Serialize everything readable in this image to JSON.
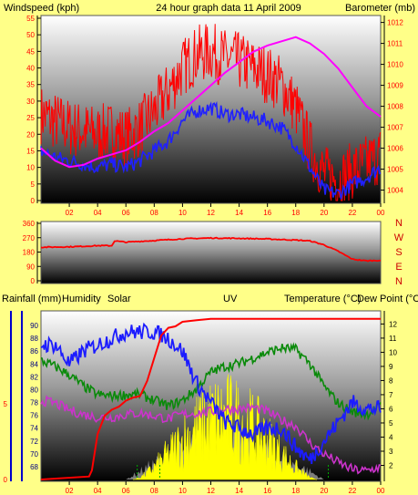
{
  "colors": {
    "background": "#ffff88",
    "wind": "#ff0000",
    "gust": "#ff0000",
    "avg": "#2020ff",
    "pressure": "#ff00ff",
    "direction": "#ff0000",
    "rain": "#ff0000",
    "humidity": "#1c1cff",
    "solar": "#dcdcdc",
    "uv": "#ffff00",
    "temperature": "#0a8a0a",
    "dewpoint": "#cc33cc",
    "axis_text": "#ff0000",
    "temp_axis_text": "#000000",
    "hum_axis_text": "#000080",
    "compass_text": "#cc0000"
  },
  "header": {
    "left_title": "Windspeed (kph)",
    "center_title": "24 hour graph data   11 April 2009",
    "right_title": "Barometer (mb)"
  },
  "direction_axis": {
    "labels": [
      "N",
      "W",
      "S",
      "E",
      "N"
    ]
  },
  "bottom_header": {
    "rainfall": "Rainfall (mm)",
    "humidity": "Humidity",
    "solar": "Solar",
    "uv": "UV",
    "temperature": "Temperature (°C)",
    "dewpoint": "Dew Point (°C"
  },
  "chart_data": [
    {
      "type": "line",
      "title": "24 hour graph data   11 April 2009",
      "x_ticks": [
        "02",
        "04",
        "06",
        "08",
        "10",
        "12",
        "14",
        "16",
        "18",
        "20",
        "22",
        "00"
      ],
      "ylabel": "Windspeed (kph)",
      "ylim": [
        0,
        55
      ],
      "yticks": [
        0,
        5,
        10,
        15,
        20,
        25,
        30,
        35,
        40,
        45,
        50,
        55
      ],
      "y2label": "Barometer (mb)",
      "y2lim": [
        1003.5,
        1012.2
      ],
      "y2ticks": [
        1004,
        1005,
        1006,
        1007,
        1008,
        1009,
        1010,
        1011,
        1012
      ],
      "series": [
        {
          "x": [
            0,
            1,
            2,
            3,
            4,
            5,
            6,
            7,
            8,
            9,
            10,
            11,
            12,
            13,
            14,
            15,
            16,
            17,
            18,
            19,
            20,
            21,
            22,
            23,
            24
          ],
          "values": [
            26,
            24,
            22,
            21,
            20,
            21,
            19,
            22,
            27,
            33,
            40,
            44,
            45,
            43,
            42,
            40,
            38,
            35,
            28,
            16,
            8,
            6,
            9,
            11,
            14
          ]
        },
        {
          "x": [
            0,
            1,
            2,
            3,
            4,
            5,
            6,
            7,
            8,
            9,
            10,
            11,
            12,
            13,
            14,
            15,
            16,
            17,
            18,
            19,
            20,
            21,
            22,
            23,
            24
          ],
          "values": [
            15,
            13,
            12,
            11,
            10,
            11,
            10,
            12,
            15,
            18,
            24,
            27,
            28,
            26,
            26,
            25,
            24,
            22,
            17,
            10,
            3,
            2,
            5,
            7,
            10
          ]
        },
        {
          "x": [
            0,
            1,
            2,
            3,
            4,
            5,
            6,
            7,
            8,
            9,
            10,
            11,
            12,
            13,
            14,
            15,
            16,
            17,
            18,
            19,
            20,
            21,
            22,
            23,
            24
          ],
          "values": [
            1006.0,
            1005.4,
            1005.1,
            1005.2,
            1005.5,
            1005.7,
            1005.9,
            1006.3,
            1006.8,
            1007.2,
            1007.8,
            1008.4,
            1009.0,
            1009.6,
            1010.1,
            1010.6,
            1010.9,
            1011.1,
            1011.3,
            1011.0,
            1010.5,
            1009.8,
            1008.9,
            1008.0,
            1007.5
          ]
        }
      ]
    },
    {
      "type": "line",
      "x_ticks": [
        "02",
        "04",
        "06",
        "08",
        "10",
        "12",
        "14",
        "16",
        "18",
        "20",
        "22",
        "00"
      ],
      "ylim": [
        0,
        360
      ],
      "yticks": [
        0,
        90,
        180,
        270,
        360
      ],
      "series": [
        {
          "x": [
            0,
            2,
            3,
            4,
            5,
            5.2,
            6,
            8,
            10,
            12,
            14,
            16,
            18,
            19,
            20,
            21,
            22,
            23,
            24
          ],
          "values": [
            210,
            213,
            216,
            220,
            220,
            250,
            242,
            252,
            263,
            268,
            266,
            262,
            255,
            250,
            225,
            185,
            135,
            125,
            128
          ]
        }
      ]
    },
    {
      "type": "line",
      "x_ticks": [
        "02",
        "04",
        "06",
        "08",
        "10",
        "12",
        "14",
        "16",
        "18",
        "20",
        "22",
        "00"
      ],
      "humidity_lim": [
        66,
        92
      ],
      "humidity_ticks": [
        68,
        70,
        72,
        74,
        76,
        78,
        80,
        82,
        84,
        86,
        88,
        90
      ],
      "rain_lim": [
        0,
        11
      ],
      "rain_ticks": [
        0,
        5
      ],
      "temp_lim": [
        1,
        12.8
      ],
      "temp_ticks": [
        2,
        3,
        4,
        5,
        6,
        7,
        8,
        9,
        10,
        11,
        12
      ],
      "series": [
        {
          "x": [
            0,
            3.4,
            3.6,
            4,
            4.5,
            5,
            5.5,
            6,
            6.5,
            7,
            7.5,
            8,
            8.5,
            9,
            9.5,
            10,
            11,
            12,
            14,
            16,
            18,
            20,
            22,
            24
          ],
          "values": [
            0,
            0.2,
            0.6,
            3.0,
            4.2,
            4.6,
            4.8,
            5.2,
            5.4,
            5.5,
            6.5,
            8.0,
            9.5,
            10.0,
            10.1,
            10.4,
            10.5,
            10.6,
            10.6,
            10.6,
            10.6,
            10.6,
            10.6,
            10.6
          ]
        },
        {
          "x": [
            0,
            1,
            2,
            3,
            4,
            5,
            6,
            7,
            8,
            9,
            10,
            11,
            12,
            13,
            14,
            15,
            16,
            17,
            18,
            19,
            20,
            21,
            22,
            23,
            24
          ],
          "values": [
            87,
            87,
            84,
            86,
            87,
            88,
            89,
            89,
            89,
            88,
            86,
            81,
            78,
            75,
            74,
            73,
            74,
            74,
            71,
            69,
            72,
            75,
            78,
            77,
            77
          ]
        },
        {
          "x": [
            0,
            1,
            2,
            3,
            4,
            5,
            6,
            7,
            8,
            9,
            10,
            11,
            12,
            13,
            14,
            15,
            16,
            17,
            18,
            19,
            20,
            21,
            22,
            23,
            24
          ],
          "values": [
            9.4,
            9.0,
            8.4,
            7.6,
            7.0,
            6.9,
            7.0,
            7.0,
            6.6,
            6.2,
            6.6,
            7.4,
            8.6,
            9.0,
            9.2,
            9.6,
            10.0,
            10.3,
            10.2,
            9.2,
            7.6,
            6.4,
            5.8,
            5.6,
            6.2
          ]
        },
        {
          "x": [
            0,
            1,
            2,
            3,
            4,
            5,
            6,
            7,
            8,
            9,
            10,
            11,
            12,
            13,
            14,
            15,
            16,
            17,
            18,
            19,
            20,
            21,
            22,
            23,
            24
          ],
          "values": [
            6.6,
            6.4,
            5.9,
            5.6,
            5.4,
            5.4,
            5.6,
            5.7,
            5.5,
            5.3,
            5.6,
            5.7,
            5.8,
            6.0,
            6.0,
            6.1,
            5.8,
            5.2,
            4.8,
            3.6,
            2.8,
            2.2,
            1.7,
            1.6,
            1.9
          ]
        }
      ]
    }
  ]
}
